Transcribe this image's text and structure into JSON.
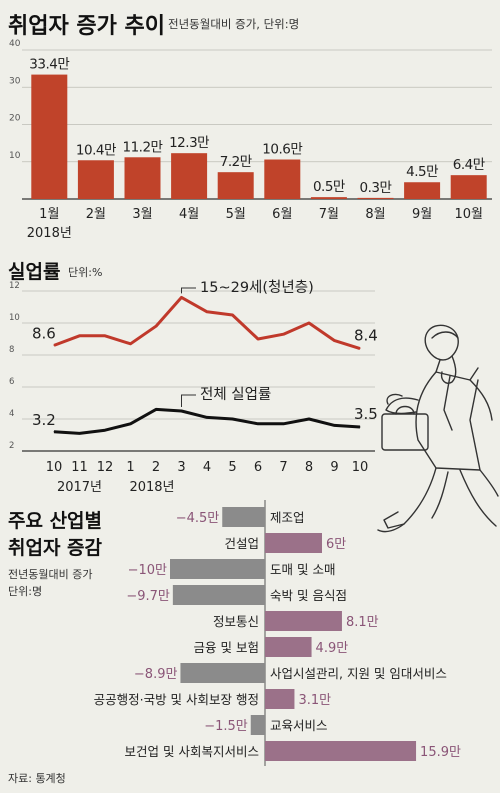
{
  "employment": {
    "title": "취업자 증가 추이",
    "subtitle": "전년동월대비 증가, 단위:명"
  },
  "unemployment": {
    "title": "실업률",
    "subtitle": "단위:%"
  },
  "industry": {
    "title_line1": "주요 산업별",
    "title_line2": "취업자 증감",
    "subtitle_line1": "전년동월대비 증가",
    "subtitle_line2": "단위:명"
  },
  "source": "자료: 통계청",
  "colors": {
    "bar_red": "#c0432a",
    "line_red": "#c0392b",
    "line_black": "#111111",
    "bar_gray": "#8b8b8b",
    "bar_purple": "#9b7189",
    "label_purple": "#8a5577"
  },
  "chart_data": [
    {
      "type": "bar",
      "title": "취업자 증가 추이",
      "subtitle": "전년동월대비 증가, 단위:명",
      "categories": [
        "1월",
        "2월",
        "3월",
        "4월",
        "5월",
        "6월",
        "7월",
        "8월",
        "9월",
        "10월"
      ],
      "year_label": "2018년",
      "values": [
        33.4,
        10.4,
        11.2,
        12.3,
        7.2,
        10.6,
        0.5,
        0.3,
        4.5,
        6.4
      ],
      "value_labels": [
        "33.4만",
        "10.4만",
        "11.2만",
        "12.3만",
        "7.2만",
        "10.6만",
        "0.5만",
        "0.3만",
        "4.5만",
        "6.4만"
      ],
      "yticks": [
        "40",
        "30",
        "20",
        "10"
      ],
      "ylim": [
        0,
        40
      ],
      "grid": true
    },
    {
      "type": "line",
      "title": "실업률",
      "subtitle": "단위:%",
      "x": [
        "10",
        "11",
        "12",
        "1",
        "2",
        "3",
        "4",
        "5",
        "6",
        "7",
        "8",
        "9",
        "10"
      ],
      "year_labels": [
        "2017년",
        "2018년"
      ],
      "yticks": [
        "12",
        "10",
        "8",
        "6",
        "4",
        "2"
      ],
      "ylim": [
        2,
        12
      ],
      "grid": true,
      "series": [
        {
          "name": "15~29세(청년층)",
          "values": [
            8.6,
            9.2,
            9.2,
            8.7,
            9.8,
            11.6,
            10.7,
            10.5,
            9.0,
            9.3,
            10.0,
            8.9,
            8.4
          ],
          "start_label": "8.6",
          "end_label": "8.4"
        },
        {
          "name": "전체 실업률",
          "values": [
            3.2,
            3.1,
            3.3,
            3.7,
            4.6,
            4.5,
            4.1,
            4.0,
            3.7,
            3.7,
            4.0,
            3.6,
            3.5
          ],
          "start_label": "3.2",
          "end_label": "3.5"
        }
      ]
    },
    {
      "type": "bar",
      "orientation": "horizontal",
      "title": "주요 산업별 취업자 증감",
      "subtitle": "전년동월대비 증가 단위:명",
      "categories": [
        "제조업",
        "건설업",
        "도매 및 소매",
        "숙박 및 음식점",
        "정보통신",
        "금융 및 보험",
        "사업시설관리, 지원 및 임대서비스",
        "공공행정·국방 및 사회보장 행정",
        "교육서비스",
        "보건업 및 사회복지서비스"
      ],
      "values": [
        -4.5,
        6,
        -10,
        -9.7,
        8.1,
        4.9,
        -8.9,
        3.1,
        -1.5,
        15.9
      ],
      "value_labels": [
        "−4.5만",
        "6만",
        "−10만",
        "−9.7만",
        "8.1만",
        "4.9만",
        "−8.9만",
        "3.1만",
        "−1.5만",
        "15.9만"
      ]
    }
  ]
}
